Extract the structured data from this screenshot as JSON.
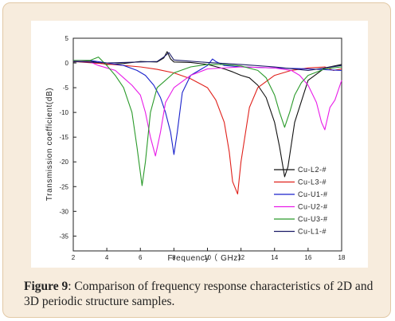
{
  "caption": {
    "label": "Figure 9",
    "text": ": Comparison of frequency response characteristics of 2D and 3D periodic structure samples."
  },
  "chart_data": {
    "type": "line",
    "title": "",
    "xlabel": "Frequency（ GHz）",
    "ylabel": "Transmission coefficient(dB)",
    "xlim": [
      2,
      18
    ],
    "ylim": [
      -38,
      5
    ],
    "xticks": [
      2,
      4,
      6,
      8,
      10,
      12,
      14,
      16,
      18
    ],
    "yticks": [
      5,
      0,
      -5,
      -10,
      -15,
      -20,
      -25,
      -30,
      -35
    ],
    "grid": false,
    "legend": "bottom-right",
    "series": [
      {
        "name": "Cu-L2-#",
        "color": "#111111",
        "x": [
          2,
          3,
          4,
          5,
          6,
          7,
          7.4,
          7.6,
          7.8,
          8,
          9,
          10,
          11,
          11.5,
          12,
          12.5,
          13,
          13.5,
          14,
          14.3,
          14.6,
          14.8,
          15.2,
          16,
          17,
          18
        ],
        "y": [
          0.2,
          0.4,
          -0.3,
          -0.1,
          0.3,
          0.2,
          1.0,
          2.3,
          0.8,
          0.2,
          0.1,
          -0.3,
          -1.2,
          -1.8,
          -2.5,
          -3.0,
          -4.5,
          -7.0,
          -12.0,
          -17.0,
          -23.0,
          -21.0,
          -12.0,
          -3.5,
          -1.0,
          -0.3
        ]
      },
      {
        "name": "Cu-L3-#",
        "color": "#e0201a",
        "x": [
          2,
          4,
          6,
          7,
          8,
          9,
          10,
          10.5,
          11,
          11.3,
          11.5,
          11.8,
          12,
          12.5,
          13,
          14,
          15,
          16,
          17,
          17.5,
          18
        ],
        "y": [
          0.3,
          -0.2,
          -0.8,
          -1.3,
          -2.0,
          -3.2,
          -5.0,
          -7.5,
          -12.0,
          -18.0,
          -24.0,
          -26.5,
          -20.0,
          -9.0,
          -5.0,
          -2.5,
          -1.5,
          -1.0,
          -0.8,
          -1.5,
          -1.2
        ]
      },
      {
        "name": "Cu-U1-#",
        "color": "#1a22cc",
        "x": [
          2,
          3,
          4,
          5,
          5.8,
          6.3,
          6.8,
          7.2,
          7.5,
          7.8,
          8,
          8.2,
          8.5,
          9,
          9.5,
          10,
          10.3,
          10.5,
          11,
          12,
          14,
          16,
          18
        ],
        "y": [
          0.5,
          0.5,
          0.0,
          -0.5,
          -1.5,
          -2.5,
          -4.5,
          -7.0,
          -10.0,
          -14.0,
          -18.5,
          -14.0,
          -6.0,
          -2.5,
          -1.5,
          -0.5,
          0.8,
          0.3,
          -0.5,
          -0.8,
          -1.0,
          -1.2,
          -1.5
        ]
      },
      {
        "name": "Cu-U2-#",
        "color": "#e81ce8",
        "x": [
          2,
          3,
          3.5,
          4,
          4.5,
          5,
          5.5,
          6,
          6.3,
          6.6,
          6.9,
          7.2,
          7.5,
          8,
          9,
          10,
          12,
          14,
          15,
          15.5,
          16,
          16.5,
          16.8,
          17,
          17.3,
          17.6,
          18
        ],
        "y": [
          0.4,
          0.2,
          -0.5,
          -1.0,
          -1.5,
          -3.0,
          -4.5,
          -6.5,
          -10.0,
          -15.0,
          -18.8,
          -14.0,
          -8.0,
          -5.0,
          -2.5,
          -1.2,
          -0.8,
          -1.0,
          -1.5,
          -2.5,
          -4.5,
          -8.0,
          -12.0,
          -13.5,
          -9.0,
          -7.5,
          -3.5
        ]
      },
      {
        "name": "Cu-U3-#",
        "color": "#2a9a2a",
        "x": [
          2,
          3,
          3.5,
          4,
          4.5,
          5,
          5.5,
          5.8,
          6.1,
          6.3,
          6.6,
          7,
          8,
          9,
          10,
          11,
          12,
          13,
          13.5,
          14,
          14.3,
          14.6,
          14.9,
          15.2,
          15.6,
          16,
          17,
          18
        ],
        "y": [
          0.5,
          0.5,
          1.2,
          -0.5,
          -2.5,
          -5.0,
          -10.0,
          -17.0,
          -24.8,
          -20.0,
          -10.0,
          -5.0,
          -2.0,
          -0.8,
          -0.3,
          -0.3,
          -0.6,
          -1.5,
          -3.0,
          -6.5,
          -10.0,
          -13.0,
          -10.0,
          -6.5,
          -4.0,
          -2.5,
          -1.2,
          -0.8
        ]
      },
      {
        "name": "Cu-L1-#",
        "color": "#1a1a66",
        "x": [
          2,
          4,
          6,
          7,
          7.4,
          7.7,
          8,
          10,
          12,
          14,
          16,
          17,
          18
        ],
        "y": [
          0.3,
          0.0,
          0.2,
          0.3,
          1.2,
          2.1,
          0.6,
          0.1,
          -0.3,
          -0.8,
          -1.5,
          -1.0,
          -0.5
        ]
      }
    ]
  }
}
